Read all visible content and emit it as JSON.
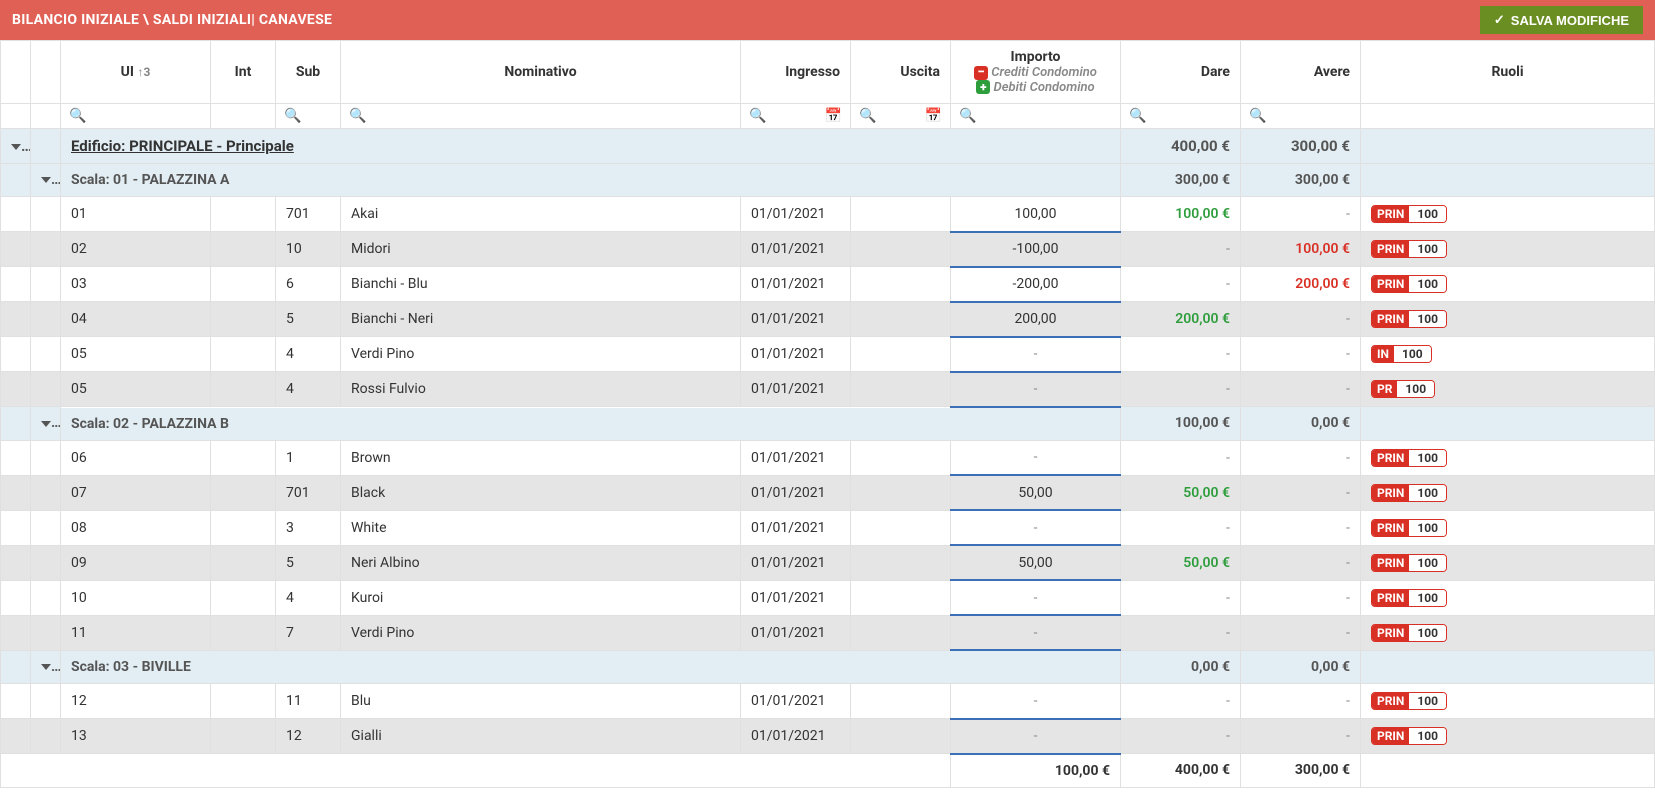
{
  "header": {
    "title": "BILANCIO INIZIALE \\ SALDI INIZIALI| CANAVESE",
    "save_label": "SALVA MODIFICHE"
  },
  "columns": {
    "ui": "UI",
    "ui_sort": "↑3",
    "int": "Int",
    "sub": "Sub",
    "nominativo": "Nominativo",
    "ingresso": "Ingresso",
    "uscita": "Uscita",
    "importo": "Importo",
    "importo_crediti": "Crediti Condomino",
    "importo_debiti": "Debiti Condomino",
    "dare": "Dare",
    "avere": "Avere",
    "ruoli": "Ruoli"
  },
  "groups": [
    {
      "level": 0,
      "label": "Edificio: PRINCIPALE - Principale",
      "dare": "400,00 €",
      "avere": "300,00 €"
    },
    {
      "level": 1,
      "label": "Scala: 01 - PALAZZINA A",
      "dare": "300,00 €",
      "avere": "300,00 €"
    }
  ],
  "scalaA": [
    {
      "alt": false,
      "ui": "01",
      "int": "",
      "sub": "701",
      "nom": "Akai",
      "ing": "01/01/2021",
      "usc": "",
      "imp": "100,00",
      "dare": "100,00 €",
      "avere": "-",
      "ruolo": "PRIN",
      "ruolo_val": "100"
    },
    {
      "alt": true,
      "ui": "02",
      "int": "",
      "sub": "10",
      "nom": "Midori",
      "ing": "01/01/2021",
      "usc": "",
      "imp": "-100,00",
      "dare": "-",
      "avere": "100,00 €",
      "ruolo": "PRIN",
      "ruolo_val": "100"
    },
    {
      "alt": false,
      "ui": "03",
      "int": "",
      "sub": "6",
      "nom": "Bianchi - Blu",
      "ing": "01/01/2021",
      "usc": "",
      "imp": "-200,00",
      "dare": "-",
      "avere": "200,00 €",
      "ruolo": "PRIN",
      "ruolo_val": "100"
    },
    {
      "alt": true,
      "ui": "04",
      "int": "",
      "sub": "5",
      "nom": "Bianchi - Neri",
      "ing": "01/01/2021",
      "usc": "",
      "imp": "200,00",
      "dare": "200,00 €",
      "avere": "-",
      "ruolo": "PRIN",
      "ruolo_val": "100"
    },
    {
      "alt": false,
      "ui": "05",
      "int": "",
      "sub": "4",
      "nom": "Verdi Pino",
      "ing": "01/01/2021",
      "usc": "",
      "imp": "-",
      "dare": "-",
      "avere": "-",
      "ruolo": "IN",
      "ruolo_val": "100"
    },
    {
      "alt": true,
      "ui": "05",
      "int": "",
      "sub": "4",
      "nom": "Rossi Fulvio",
      "ing": "01/01/2021",
      "usc": "",
      "imp": "-",
      "dare": "-",
      "avere": "-",
      "ruolo": "PR",
      "ruolo_val": "100"
    }
  ],
  "group_scalaB": {
    "level": 1,
    "label": "Scala: 02 - PALAZZINA B",
    "dare": "100,00 €",
    "avere": "0,00 €"
  },
  "scalaB": [
    {
      "alt": false,
      "ui": "06",
      "int": "",
      "sub": "1",
      "nom": "Brown",
      "ing": "01/01/2021",
      "usc": "",
      "imp": "-",
      "dare": "-",
      "avere": "-",
      "ruolo": "PRIN",
      "ruolo_val": "100"
    },
    {
      "alt": true,
      "ui": "07",
      "int": "",
      "sub": "701",
      "nom": "Black",
      "ing": "01/01/2021",
      "usc": "",
      "imp": "50,00",
      "dare": "50,00 €",
      "avere": "-",
      "ruolo": "PRIN",
      "ruolo_val": "100"
    },
    {
      "alt": false,
      "ui": "08",
      "int": "",
      "sub": "3",
      "nom": "White",
      "ing": "01/01/2021",
      "usc": "",
      "imp": "-",
      "dare": "-",
      "avere": "-",
      "ruolo": "PRIN",
      "ruolo_val": "100"
    },
    {
      "alt": true,
      "ui": "09",
      "int": "",
      "sub": "5",
      "nom": "Neri Albino",
      "ing": "01/01/2021",
      "usc": "",
      "imp": "50,00",
      "dare": "50,00 €",
      "avere": "-",
      "ruolo": "PRIN",
      "ruolo_val": "100"
    },
    {
      "alt": false,
      "ui": "10",
      "int": "",
      "sub": "4",
      "nom": "Kuroi",
      "ing": "01/01/2021",
      "usc": "",
      "imp": "-",
      "dare": "-",
      "avere": "-",
      "ruolo": "PRIN",
      "ruolo_val": "100"
    },
    {
      "alt": true,
      "ui": "11",
      "int": "",
      "sub": "7",
      "nom": "Verdi Pino",
      "ing": "01/01/2021",
      "usc": "",
      "imp": "-",
      "dare": "-",
      "avere": "-",
      "ruolo": "PRIN",
      "ruolo_val": "100"
    }
  ],
  "group_scalaC": {
    "level": 1,
    "label": "Scala: 03 - BIVILLE",
    "dare": "0,00 €",
    "avere": "0,00 €"
  },
  "scalaC": [
    {
      "alt": false,
      "ui": "12",
      "int": "",
      "sub": "11",
      "nom": "Blu",
      "ing": "01/01/2021",
      "usc": "",
      "imp": "-",
      "dare": "-",
      "avere": "-",
      "ruolo": "PRIN",
      "ruolo_val": "100"
    },
    {
      "alt": true,
      "ui": "13",
      "int": "",
      "sub": "12",
      "nom": "Gialli",
      "ing": "01/01/2021",
      "usc": "",
      "imp": "-",
      "dare": "-",
      "avere": "-",
      "ruolo": "PRIN",
      "ruolo_val": "100"
    }
  ],
  "footer": {
    "importo": "100,00 €",
    "dare": "400,00 €",
    "avere": "300,00 €"
  }
}
